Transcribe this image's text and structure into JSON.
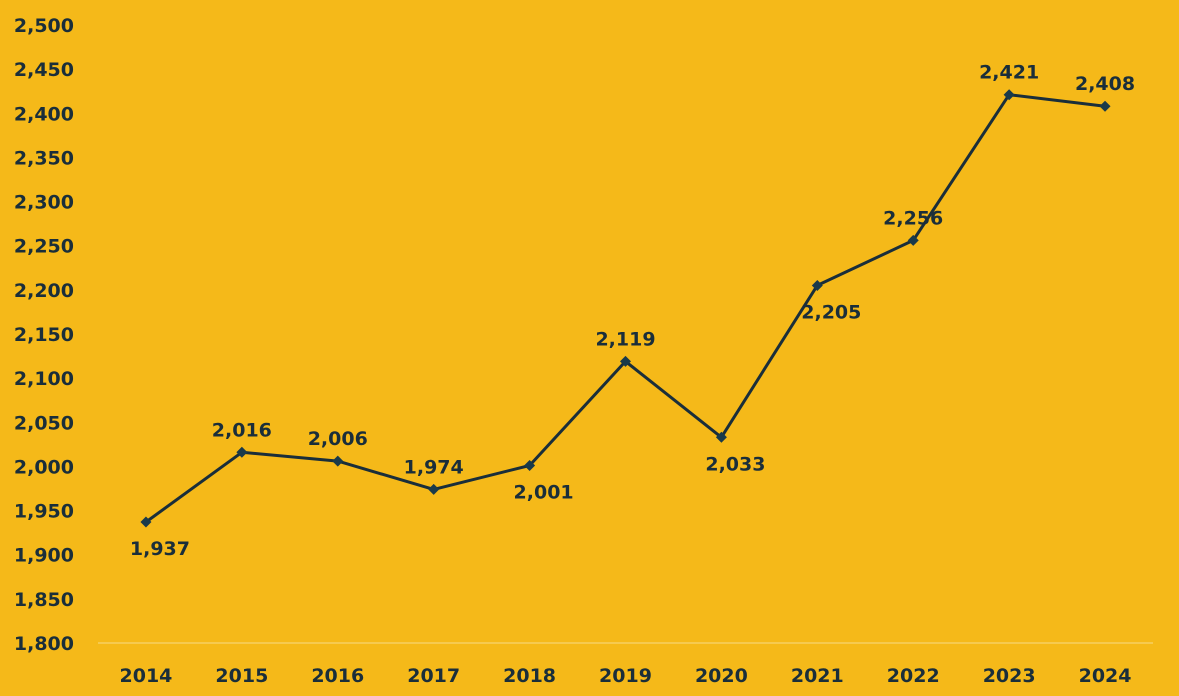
{
  "colors": {
    "background": "#F5B919",
    "line": "#1A2E3A",
    "marker": "#1A3A4A",
    "text": "#1A2E3A",
    "axis": "#F8DC85"
  },
  "chart_data": {
    "type": "line",
    "title": "",
    "xlabel": "",
    "ylabel": "",
    "categories": [
      "2014",
      "2015",
      "2016",
      "2017",
      "2018",
      "2019",
      "2020",
      "2021",
      "2022",
      "2023",
      "2024"
    ],
    "series": [
      {
        "values": [
          1937,
          2016,
          2006,
          1974,
          2001,
          2119,
          2033,
          2205,
          2256,
          2421,
          2408
        ],
        "labels": [
          "1,937",
          "2,016",
          "2,006",
          "1,974",
          "2,001",
          "2,119",
          "2,033",
          "2,205",
          "2,256",
          "2,421",
          "2,408"
        ],
        "label_positions": [
          "below",
          "above",
          "above",
          "above",
          "below",
          "above",
          "below",
          "below",
          "above",
          "above",
          "above"
        ],
        "marker": "diamond"
      }
    ],
    "ylim": [
      1800,
      2500
    ],
    "y_ticks": [
      1800,
      1850,
      1900,
      1950,
      2000,
      2050,
      2100,
      2150,
      2200,
      2250,
      2300,
      2350,
      2400,
      2450,
      2500
    ],
    "y_tick_labels": [
      "1,800",
      "1,850",
      "1,900",
      "1,950",
      "2,000",
      "2,050",
      "2,100",
      "2,150",
      "2,200",
      "2,250",
      "2,300",
      "2,350",
      "2,400",
      "2,450",
      "2,500"
    ],
    "grid": false,
    "legend": "none"
  }
}
